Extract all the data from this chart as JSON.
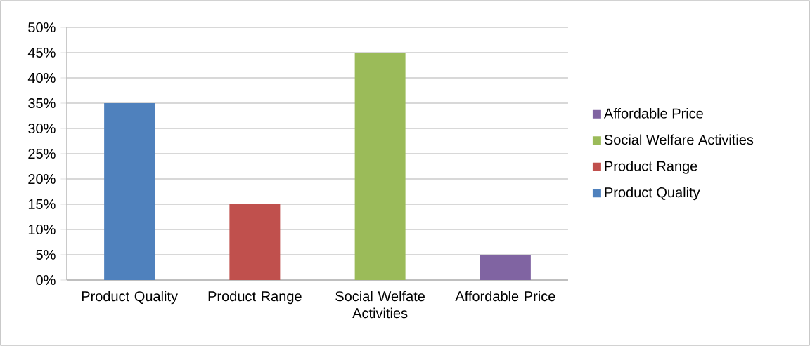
{
  "chart_data": {
    "type": "bar",
    "categories": [
      "Product Quality",
      "Product Range",
      "Social Welfate Activities",
      "Affordable Price"
    ],
    "series": [
      {
        "name": "Product Quality",
        "color": "#4f81bd",
        "values": [
          35,
          null,
          null,
          null
        ]
      },
      {
        "name": "Product Range",
        "color": "#c0504d",
        "values": [
          null,
          15,
          null,
          null
        ]
      },
      {
        "name": "Social Welfare Activities",
        "color": "#9bbb59",
        "values": [
          null,
          null,
          45,
          null
        ]
      },
      {
        "name": "Affordable Price",
        "color": "#8064a2",
        "values": [
          null,
          null,
          null,
          5
        ]
      }
    ],
    "ylim": [
      0,
      50
    ],
    "yticks": [
      {
        "value": 0,
        "label": "0%"
      },
      {
        "value": 5,
        "label": "5%"
      },
      {
        "value": 10,
        "label": "10%"
      },
      {
        "value": 15,
        "label": "15%"
      },
      {
        "value": 20,
        "label": "20%"
      },
      {
        "value": 25,
        "label": "25%"
      },
      {
        "value": 30,
        "label": "30%"
      },
      {
        "value": 35,
        "label": "35%"
      },
      {
        "value": 40,
        "label": "40%"
      },
      {
        "value": 45,
        "label": "45%"
      },
      {
        "value": 50,
        "label": "50%"
      }
    ],
    "grid": "y",
    "legend": "right"
  }
}
